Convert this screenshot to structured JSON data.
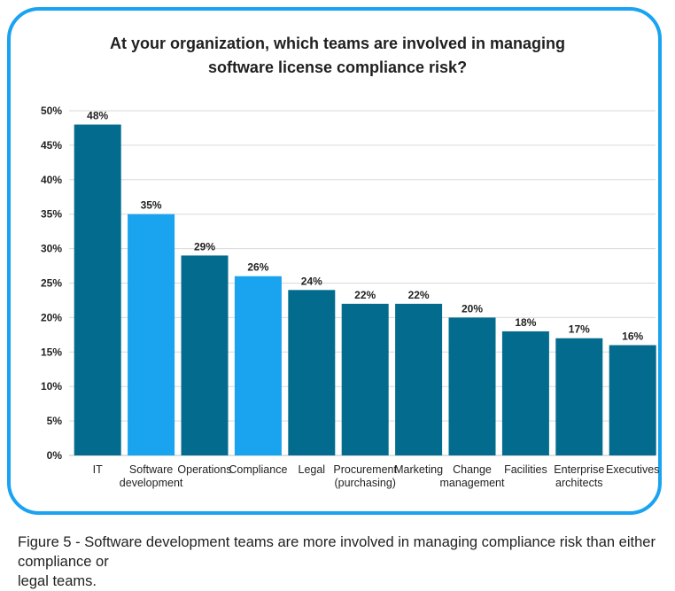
{
  "title_lines": [
    "At your organization, which teams are involved in managing",
    "software license compliance risk?"
  ],
  "caption_lines": [
    "Figure 5 - Software development teams are more involved in managing compliance risk than either compliance or",
    "legal teams."
  ],
  "colors": {
    "dark": "#036c8e",
    "light": "#1aa3ef",
    "frame": "#1aa3f0",
    "grid": "#d9d9d9"
  },
  "chart_data": {
    "type": "bar",
    "title": "At your organization, which teams are involved in managing software license compliance risk?",
    "categories": [
      [
        "IT"
      ],
      [
        "Software",
        "development"
      ],
      [
        "Operations"
      ],
      [
        "Compliance"
      ],
      [
        "Legal"
      ],
      [
        "Procurement",
        "(purchasing)"
      ],
      [
        "Marketing"
      ],
      [
        "Change",
        "management"
      ],
      [
        "Facilities"
      ],
      [
        "Enterprise",
        "architects"
      ],
      [
        "Executives"
      ]
    ],
    "values": [
      48,
      35,
      29,
      26,
      24,
      22,
      22,
      20,
      18,
      17,
      16
    ],
    "value_labels": [
      "48%",
      "35%",
      "29%",
      "26%",
      "24%",
      "22%",
      "22%",
      "20%",
      "18%",
      "17%",
      "16%"
    ],
    "bar_color": [
      "dark",
      "light",
      "dark",
      "light",
      "dark",
      "dark",
      "dark",
      "dark",
      "dark",
      "dark",
      "dark"
    ],
    "y_ticks": [
      0,
      5,
      10,
      15,
      20,
      25,
      30,
      35,
      40,
      45,
      50
    ],
    "y_tick_labels": [
      "0%",
      "5%",
      "10%",
      "15%",
      "20%",
      "25%",
      "30%",
      "35%",
      "40%",
      "45%",
      "50%"
    ],
    "ylim": [
      0,
      50
    ],
    "grid": true,
    "legend": "none"
  }
}
